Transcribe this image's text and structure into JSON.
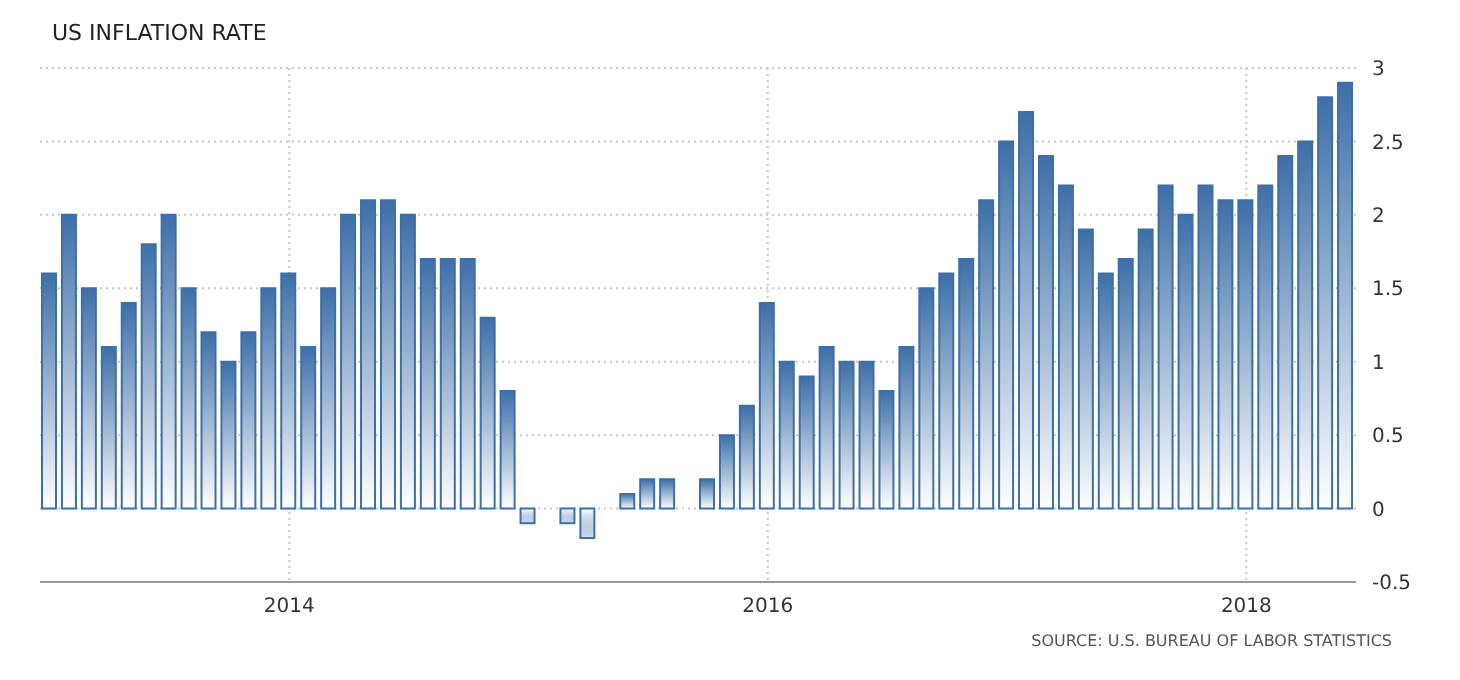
{
  "chart_data": {
    "type": "bar",
    "title": "US INFLATION RATE",
    "categories": [
      null,
      null,
      null,
      null,
      null,
      null,
      null,
      null,
      null,
      null,
      null,
      null,
      "2014",
      null,
      null,
      null,
      null,
      null,
      null,
      null,
      null,
      null,
      null,
      null,
      null,
      null,
      null,
      null,
      null,
      null,
      null,
      null,
      null,
      null,
      null,
      null,
      "2016",
      null,
      null,
      null,
      null,
      null,
      null,
      null,
      null,
      null,
      null,
      null,
      null,
      null,
      null,
      null,
      null,
      null,
      null,
      null,
      null,
      null,
      null,
      null,
      "2018",
      null,
      null,
      null,
      null,
      null
    ],
    "values": [
      1.6,
      2.0,
      1.5,
      1.1,
      1.4,
      1.8,
      2.0,
      1.5,
      1.2,
      1.0,
      1.2,
      1.5,
      1.6,
      1.1,
      1.5,
      2.0,
      2.1,
      2.1,
      2.0,
      1.7,
      1.7,
      1.7,
      1.3,
      0.8,
      -0.1,
      0.0,
      -0.1,
      -0.2,
      0.0,
      0.1,
      0.2,
      0.2,
      0.0,
      0.2,
      0.5,
      0.7,
      1.4,
      1.0,
      0.9,
      1.1,
      1.0,
      1.0,
      0.8,
      1.1,
      1.5,
      1.6,
      1.7,
      2.1,
      2.5,
      2.7,
      2.4,
      2.2,
      1.9,
      1.6,
      1.7,
      1.9,
      2.2,
      2.0,
      2.2,
      2.1,
      2.1,
      2.2,
      2.4,
      2.5,
      2.8,
      2.9
    ],
    "color": "#3d6fa8",
    "ylim": [
      -0.5,
      3
    ],
    "yticks": [
      -0.5,
      0,
      0.5,
      1,
      1.5,
      2,
      2.5,
      3
    ],
    "grid": true,
    "annotations": [
      "SOURCE: U.S. BUREAU OF LABOR STATISTICS"
    ]
  }
}
